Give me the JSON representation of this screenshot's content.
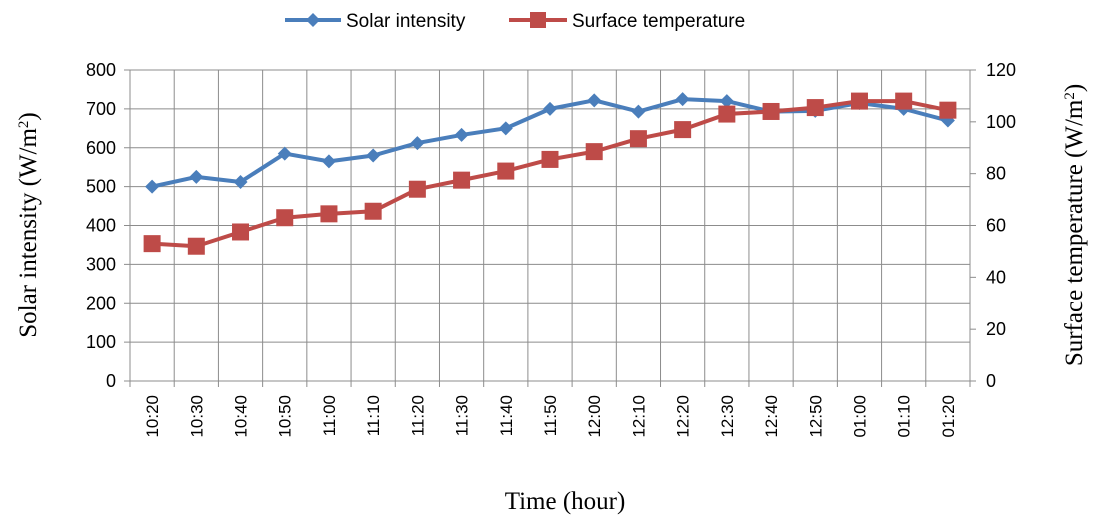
{
  "chart_data": {
    "type": "line",
    "x": [
      "10:20",
      "10:30",
      "10:40",
      "10:50",
      "11:00",
      "11:10",
      "11:20",
      "11:30",
      "11:40",
      "11:50",
      "12:00",
      "12:10",
      "12:20",
      "12:30",
      "12:40",
      "12:50",
      "01:00",
      "01:10",
      "01:20"
    ],
    "xlabel": "Time (hour)",
    "ylabel_left": {
      "text": "Solar intensity (W/m",
      "sup": "2",
      "close": ")"
    },
    "ylabel_right": {
      "text": "Surface temperature (W/m",
      "sup": "2",
      "close": ")"
    },
    "ylim_left": [
      0,
      800
    ],
    "yticks_left": [
      0,
      100,
      200,
      300,
      400,
      500,
      600,
      700,
      800
    ],
    "ylim_right": [
      0,
      120
    ],
    "yticks_right": [
      0,
      20,
      40,
      60,
      80,
      100,
      120
    ],
    "grid": true,
    "legend_position": "top-center",
    "series": [
      {
        "name": "Solar intensity",
        "axis": "left",
        "color": "#4a7ebb",
        "marker": "diamond",
        "values": [
          500,
          525,
          512,
          585,
          565,
          580,
          612,
          633,
          650,
          700,
          722,
          693,
          725,
          720,
          693,
          695,
          715,
          700,
          670
        ]
      },
      {
        "name": "Surface temperature",
        "axis": "right",
        "color": "#be4b48",
        "marker": "square",
        "values": [
          53,
          52,
          57.5,
          63,
          64.5,
          65.5,
          74,
          77.5,
          81,
          85.5,
          88.5,
          93.5,
          97,
          103,
          104,
          105.5,
          108,
          108,
          104.5
        ]
      }
    ]
  }
}
